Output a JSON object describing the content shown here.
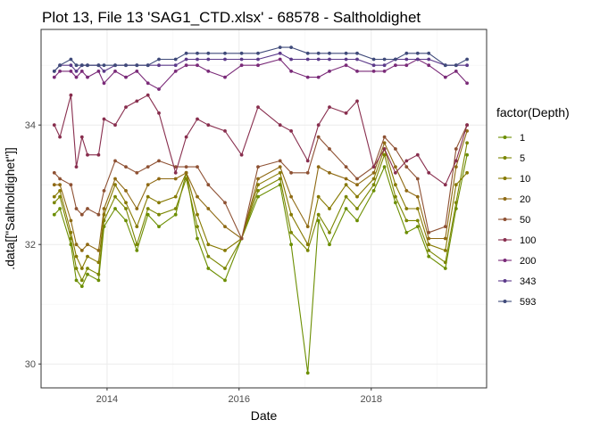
{
  "chart_data": {
    "type": "line",
    "title": "Plot 13, File 13 'SAG1_CTD.xlsx' - 68578  -  Saltholdighet",
    "xlabel": "Date",
    "ylabel": ".data[[\"Saltholdighet\"]]",
    "xlim": [
      "2013-01-01",
      "2019-10-01"
    ],
    "ylim": [
      29.6,
      35.6
    ],
    "xticks": [
      {
        "label": "2014",
        "value": "2014-01-01"
      },
      {
        "label": "2016",
        "value": "2016-01-01"
      },
      {
        "label": "2018",
        "value": "2018-01-01"
      }
    ],
    "yticks": [
      {
        "label": "30",
        "value": 30
      },
      {
        "label": "32",
        "value": 32
      },
      {
        "label": "34",
        "value": 34
      }
    ],
    "grid": true,
    "legend": {
      "title": "factor(Depth)",
      "position": "right"
    },
    "x": [
      "2013-03",
      "2013-04",
      "2013-06",
      "2013-07",
      "2013-08",
      "2013-09",
      "2013-11",
      "2013-12",
      "2014-02",
      "2014-04",
      "2014-06",
      "2014-08",
      "2014-10",
      "2015-01",
      "2015-03",
      "2015-05",
      "2015-07",
      "2015-10",
      "2016-01",
      "2016-04",
      "2016-08",
      "2016-10",
      "2017-01",
      "2017-03",
      "2017-05",
      "2017-08",
      "2017-10",
      "2018-01",
      "2018-03",
      "2018-05",
      "2018-07",
      "2018-09",
      "2018-11",
      "2019-02",
      "2019-04",
      "2019-06"
    ],
    "series": [
      {
        "name": "1",
        "color": "#6b8e00",
        "values": [
          32.5,
          32.6,
          32.0,
          31.4,
          31.3,
          31.5,
          31.4,
          32.3,
          32.6,
          32.4,
          31.9,
          32.5,
          32.3,
          32.5,
          33.2,
          32.1,
          31.6,
          31.4,
          32.1,
          32.8,
          33.0,
          32.0,
          29.85,
          32.4,
          32.0,
          32.6,
          32.4,
          32.9,
          33.3,
          32.7,
          32.2,
          32.3,
          31.8,
          31.6,
          32.6,
          33.5
        ]
      },
      {
        "name": "5",
        "color": "#7a8600",
        "values": [
          32.7,
          32.8,
          32.1,
          31.6,
          31.4,
          31.6,
          31.5,
          32.4,
          32.8,
          32.6,
          32.0,
          32.6,
          32.5,
          32.6,
          33.1,
          32.3,
          31.8,
          31.6,
          32.1,
          32.9,
          33.1,
          32.2,
          31.9,
          32.5,
          32.2,
          32.8,
          32.6,
          33.0,
          33.5,
          32.8,
          32.4,
          32.4,
          31.9,
          31.7,
          32.7,
          33.7
        ]
      },
      {
        "name": "10",
        "color": "#867900",
        "values": [
          32.8,
          32.9,
          32.2,
          31.8,
          31.6,
          31.8,
          31.7,
          32.5,
          33.0,
          32.7,
          32.3,
          32.8,
          32.7,
          32.8,
          33.2,
          32.5,
          32.0,
          31.9,
          32.1,
          33.0,
          33.2,
          32.5,
          32.0,
          32.8,
          32.6,
          33.0,
          32.8,
          33.1,
          33.6,
          33.0,
          32.6,
          32.6,
          32.0,
          31.9,
          33.0,
          33.2
        ]
      },
      {
        "name": "20",
        "color": "#8f6a14",
        "values": [
          33.0,
          33.0,
          32.4,
          32.0,
          31.9,
          32.0,
          31.9,
          32.6,
          33.1,
          32.9,
          32.6,
          33.0,
          33.1,
          33.1,
          33.2,
          32.8,
          32.6,
          32.3,
          32.1,
          33.1,
          33.3,
          32.8,
          32.3,
          33.3,
          33.2,
          33.1,
          33.0,
          33.2,
          33.7,
          33.3,
          32.9,
          32.8,
          32.1,
          32.1,
          33.3,
          33.9
        ]
      },
      {
        "name": "50",
        "color": "#8e5133",
        "values": [
          33.2,
          33.1,
          33.0,
          32.6,
          32.5,
          32.6,
          32.5,
          32.9,
          33.4,
          33.3,
          33.2,
          33.3,
          33.4,
          33.3,
          33.3,
          33.3,
          33.0,
          32.7,
          32.1,
          33.3,
          33.4,
          33.2,
          33.2,
          33.8,
          33.6,
          33.3,
          33.1,
          33.3,
          33.8,
          33.6,
          33.3,
          33.1,
          32.2,
          32.3,
          33.6,
          34.0
        ]
      },
      {
        "name": "100",
        "color": "#882e4e",
        "values": [
          34.0,
          33.8,
          34.5,
          33.3,
          33.8,
          33.5,
          33.5,
          34.1,
          34.0,
          34.3,
          34.4,
          34.5,
          34.2,
          33.2,
          33.8,
          34.1,
          34.0,
          33.9,
          33.5,
          34.3,
          34.0,
          33.9,
          33.4,
          34.0,
          34.3,
          34.2,
          34.4,
          33.3,
          33.6,
          33.2,
          33.4,
          33.5,
          33.2,
          33.0,
          33.4,
          34.0
        ]
      },
      {
        "name": "200",
        "color": "#7a2a78",
        "values": [
          34.8,
          34.9,
          34.9,
          34.8,
          34.9,
          34.8,
          34.9,
          34.7,
          34.9,
          34.8,
          34.9,
          34.7,
          34.6,
          34.9,
          35.0,
          35.0,
          34.9,
          34.8,
          35.0,
          35.0,
          35.1,
          34.9,
          34.8,
          34.8,
          34.9,
          35.0,
          34.9,
          34.9,
          34.9,
          35.0,
          35.0,
          35.1,
          35.0,
          34.8,
          34.9,
          34.7
        ]
      },
      {
        "name": "343",
        "color": "#5c3a8a",
        "values": [
          34.9,
          35.0,
          35.0,
          34.9,
          35.0,
          35.0,
          35.0,
          34.9,
          35.0,
          35.0,
          35.0,
          35.0,
          35.0,
          35.0,
          35.1,
          35.1,
          35.1,
          35.1,
          35.1,
          35.1,
          35.2,
          35.1,
          35.1,
          35.1,
          35.1,
          35.1,
          35.1,
          35.0,
          35.0,
          35.1,
          35.1,
          35.1,
          35.1,
          35.0,
          35.0,
          35.0
        ]
      },
      {
        "name": "593",
        "color": "#3f4a7a",
        "values": [
          34.9,
          35.0,
          35.1,
          35.0,
          35.0,
          35.0,
          35.0,
          35.0,
          35.0,
          35.0,
          35.0,
          35.0,
          35.1,
          35.1,
          35.2,
          35.2,
          35.2,
          35.2,
          35.2,
          35.2,
          35.3,
          35.3,
          35.2,
          35.2,
          35.2,
          35.2,
          35.2,
          35.1,
          35.1,
          35.1,
          35.2,
          35.2,
          35.2,
          35.0,
          35.0,
          35.1
        ]
      }
    ]
  }
}
